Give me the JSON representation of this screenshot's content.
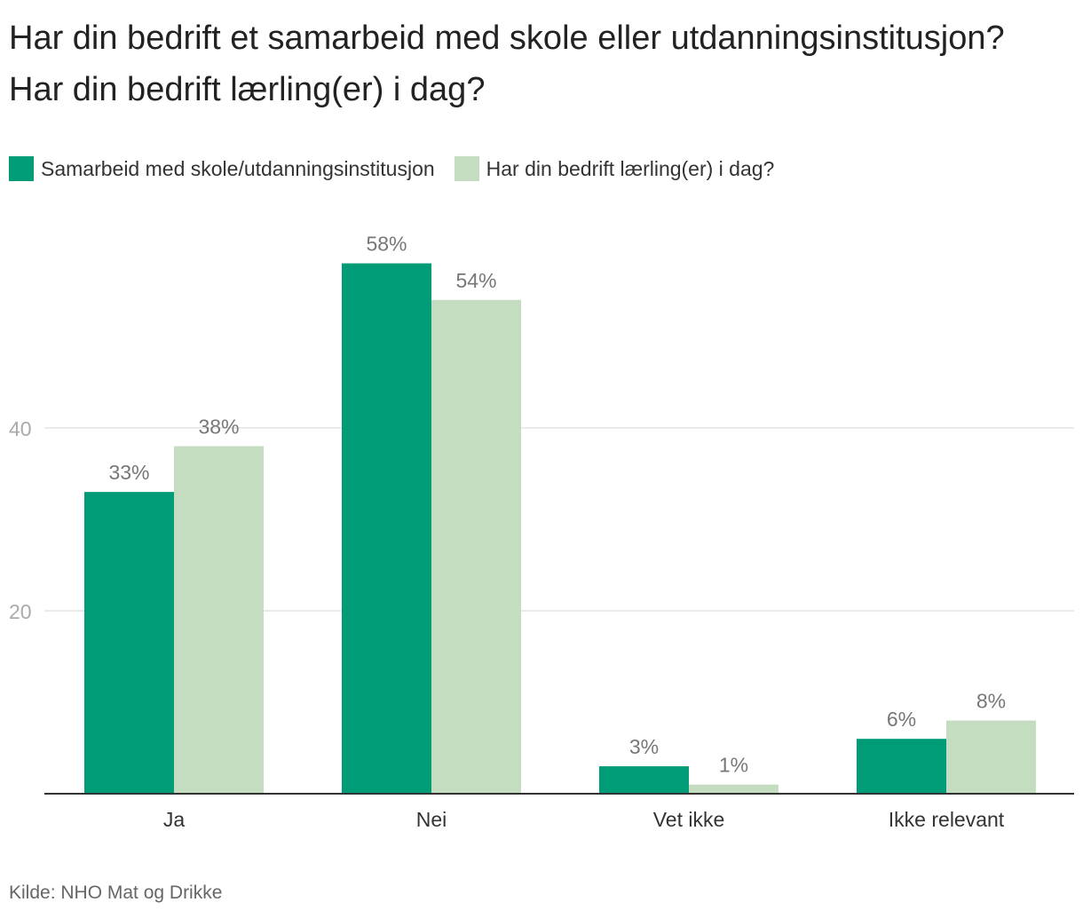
{
  "chart_data": {
    "type": "bar",
    "title": "Har din bedrift et samarbeid med skole eller utdanningsinstitusjon? Har din bedrift lærling(er) i dag?",
    "categories": [
      "Ja",
      "Nei",
      "Vet ikke",
      "Ikke relevant"
    ],
    "series": [
      {
        "name": "Samarbeid med skole/utdanningsinstitusjon",
        "values": [
          33,
          58,
          3,
          6
        ],
        "labels": [
          "33%",
          "58%",
          "3%",
          "6%"
        ],
        "color": "#009b77"
      },
      {
        "name": "Har din bedrift lærling(er) i dag?",
        "values": [
          38,
          54,
          1,
          8
        ],
        "labels": [
          "38%",
          "54%",
          "1%",
          "8%"
        ],
        "color": "#c4dcbf"
      }
    ],
    "yticks": [
      20,
      40
    ],
    "ylim": [
      0,
      60
    ],
    "xlabel": "",
    "ylabel": "",
    "grid": true,
    "legend_position": "top-left",
    "source": "Kilde: NHO Mat og Drikke"
  },
  "colors": {
    "axis": "#333333",
    "grid": "#e3e3e3",
    "tick_label": "#aaaaaa",
    "data_label": "#777777"
  }
}
